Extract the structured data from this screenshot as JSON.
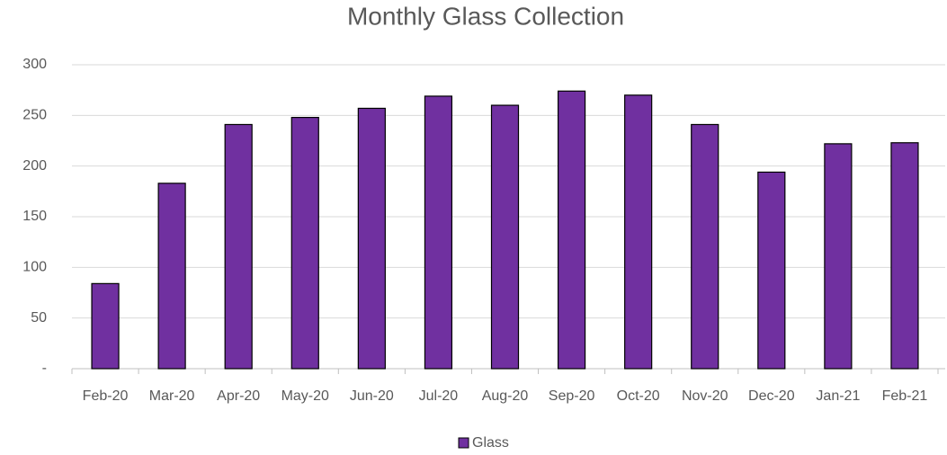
{
  "chart_data": {
    "type": "bar",
    "title": "Monthly Glass Collection",
    "categories": [
      "Feb-20",
      "Mar-20",
      "Apr-20",
      "May-20",
      "Jun-20",
      "Jul-20",
      "Aug-20",
      "Sep-20",
      "Oct-20",
      "Nov-20",
      "Dec-20",
      "Jan-21",
      "Feb-21"
    ],
    "series": [
      {
        "name": "Glass",
        "color": "#7030a0",
        "values": [
          84,
          183,
          241,
          248,
          257,
          269,
          260,
          274,
          270,
          241,
          194,
          222,
          223
        ]
      }
    ],
    "ylim": [
      0,
      300
    ],
    "yticks": [
      {
        "value": 0,
        "label": "-"
      },
      50,
      100,
      150,
      200,
      250,
      300
    ],
    "grid": true,
    "legend": "bottom"
  }
}
